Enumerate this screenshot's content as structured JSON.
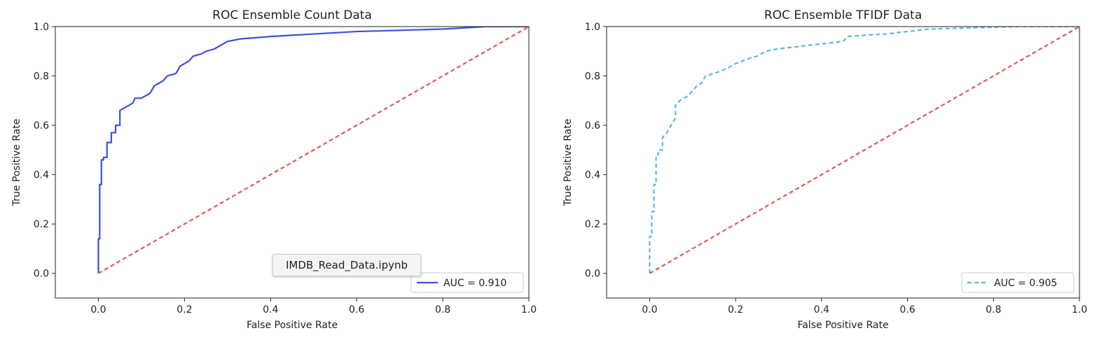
{
  "chart_data": [
    {
      "type": "line",
      "title": "ROC Ensemble Count Data",
      "xlabel": "False Positive Rate",
      "ylabel": "True Positive Rate",
      "xlim": [
        -0.1,
        1.0
      ],
      "ylim": [
        -0.1,
        1.0
      ],
      "xticks": [
        "0.0",
        "0.2",
        "0.4",
        "0.6",
        "0.8",
        "1.0"
      ],
      "yticks": [
        "0.0",
        "0.2",
        "0.4",
        "0.6",
        "0.8",
        "1.0"
      ],
      "legend_position": "lower-right",
      "series": [
        {
          "name": "AUC = 0.910",
          "color": "#3b50e0",
          "style": "solid",
          "x": [
            0,
            0,
            0.003,
            0.003,
            0.007,
            0.007,
            0.012,
            0.012,
            0.02,
            0.02,
            0.03,
            0.03,
            0.04,
            0.04,
            0.05,
            0.05,
            0.06,
            0.08,
            0.085,
            0.1,
            0.11,
            0.12,
            0.13,
            0.14,
            0.15,
            0.16,
            0.18,
            0.19,
            0.2,
            0.21,
            0.22,
            0.24,
            0.25,
            0.27,
            0.28,
            0.29,
            0.3,
            0.33,
            0.4,
            0.45,
            0.5,
            0.6,
            0.7,
            0.8,
            0.9,
            1.0
          ],
          "y": [
            0,
            0.14,
            0.14,
            0.36,
            0.36,
            0.46,
            0.46,
            0.47,
            0.47,
            0.53,
            0.53,
            0.57,
            0.57,
            0.6,
            0.6,
            0.66,
            0.67,
            0.69,
            0.71,
            0.71,
            0.72,
            0.73,
            0.76,
            0.77,
            0.78,
            0.8,
            0.81,
            0.84,
            0.85,
            0.86,
            0.88,
            0.89,
            0.9,
            0.91,
            0.92,
            0.93,
            0.94,
            0.95,
            0.96,
            0.965,
            0.97,
            0.98,
            0.985,
            0.99,
            1.0,
            1.0
          ]
        },
        {
          "name": "",
          "color": "#e05a5a",
          "style": "dashed",
          "x": [
            0,
            1
          ],
          "y": [
            0,
            1
          ]
        }
      ]
    },
    {
      "type": "line",
      "title": "ROC Ensemble TFIDF Data",
      "xlabel": "False Positive Rate",
      "ylabel": "True Positive Rate",
      "xlim": [
        -0.1,
        1.0
      ],
      "ylim": [
        -0.1,
        1.0
      ],
      "xticks": [
        "0.0",
        "0.2",
        "0.4",
        "0.6",
        "0.8",
        "1.0"
      ],
      "yticks": [
        "0.0",
        "0.2",
        "0.4",
        "0.6",
        "0.8",
        "1.0"
      ],
      "legend_position": "lower-right",
      "series": [
        {
          "name": "AUC = 0.905",
          "color": "#5bbad8",
          "style": "dashed",
          "x": [
            0,
            0,
            0.005,
            0.005,
            0.01,
            0.01,
            0.015,
            0.015,
            0.02,
            0.02,
            0.03,
            0.03,
            0.04,
            0.05,
            0.06,
            0.06,
            0.07,
            0.09,
            0.1,
            0.11,
            0.12,
            0.13,
            0.15,
            0.18,
            0.2,
            0.23,
            0.25,
            0.27,
            0.3,
            0.35,
            0.4,
            0.45,
            0.46,
            0.5,
            0.55,
            0.6,
            0.65,
            0.75,
            0.85,
            0.95,
            1.0
          ],
          "y": [
            0,
            0.15,
            0.15,
            0.25,
            0.25,
            0.36,
            0.36,
            0.48,
            0.48,
            0.5,
            0.5,
            0.55,
            0.57,
            0.6,
            0.63,
            0.68,
            0.7,
            0.72,
            0.74,
            0.76,
            0.77,
            0.8,
            0.81,
            0.83,
            0.85,
            0.87,
            0.88,
            0.9,
            0.91,
            0.92,
            0.93,
            0.94,
            0.96,
            0.965,
            0.97,
            0.98,
            0.99,
            0.995,
            1.0,
            1.0,
            1.0
          ]
        },
        {
          "name": "",
          "color": "#e05a5a",
          "style": "dashed",
          "x": [
            0,
            1
          ],
          "y": [
            0,
            1
          ]
        }
      ]
    }
  ],
  "overlay": {
    "tooltip_text": "IMDB_Read_Data.ipynb"
  }
}
